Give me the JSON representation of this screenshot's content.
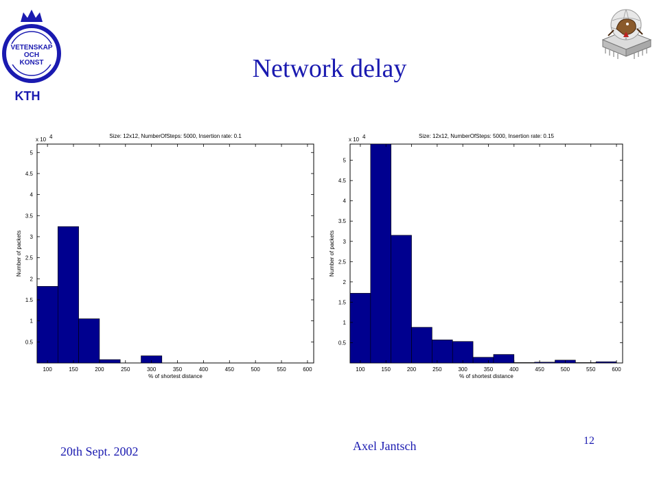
{
  "slide": {
    "title": "Network delay",
    "date": "20th Sept. 2002",
    "author": "Axel Jantsch",
    "page_number": "12",
    "logo_left": "VETENSKAP OCH KONST KTH",
    "logo_left_icon": "kth-crest-icon",
    "logo_right_icon": "chip-mascot-icon"
  },
  "chart_data": [
    {
      "type": "bar",
      "title": "Size: 12x12, NumberOfSteps: 5000, Insertion rate: 0.1",
      "xlabel": "% of shortest distance",
      "ylabel": "Number of packets",
      "y_multiplier": "x 10",
      "y_multiplier_exp": "4",
      "xlim": [
        80,
        612
      ],
      "ylim": [
        0,
        5.2
      ],
      "xticks": [
        100,
        150,
        200,
        250,
        300,
        350,
        400,
        450,
        500,
        550,
        600
      ],
      "yticks": [
        0.5,
        1,
        1.5,
        2,
        2.5,
        3,
        3.5,
        4,
        4.5,
        5
      ],
      "bin_width": 40,
      "x": [
        100,
        140,
        180,
        220,
        260,
        300,
        340,
        380,
        420,
        460,
        500,
        540,
        580
      ],
      "values": [
        1.82,
        3.24,
        1.05,
        0.08,
        0,
        0.17,
        0,
        0,
        0,
        0,
        0,
        0,
        0
      ],
      "color": "#00008f"
    },
    {
      "type": "bar",
      "title": "Size: 12x12, NumberOfSteps: 5000, Insertion rate: 0.15",
      "xlabel": "% of shortest distance",
      "ylabel": "Number of packets",
      "y_multiplier": "x 10",
      "y_multiplier_exp": "4",
      "xlim": [
        80,
        612
      ],
      "ylim": [
        0,
        5.4
      ],
      "xticks": [
        100,
        150,
        200,
        250,
        300,
        350,
        400,
        450,
        500,
        550,
        600
      ],
      "yticks": [
        0.5,
        1,
        1.5,
        2,
        2.5,
        3,
        3.5,
        4,
        4.5,
        5
      ],
      "bin_width": 40,
      "x": [
        100,
        140,
        180,
        220,
        260,
        300,
        340,
        380,
        420,
        460,
        500,
        540,
        580
      ],
      "values": [
        1.72,
        5.4,
        3.15,
        0.88,
        0.57,
        0.53,
        0.14,
        0.21,
        0.01,
        0.02,
        0.07,
        0.01,
        0.03
      ],
      "color": "#00008f"
    }
  ]
}
